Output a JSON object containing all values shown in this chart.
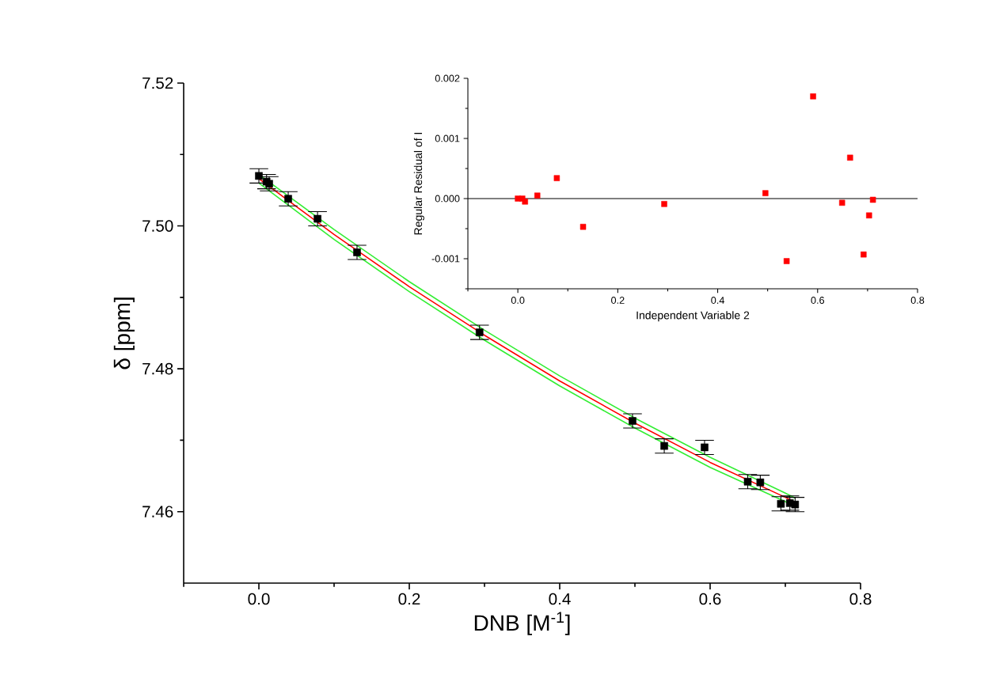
{
  "chart_data": [
    {
      "type": "scatter",
      "xlabel": "DNB [M$^{-1}$]",
      "ylabel": "δ [ppm]",
      "x": [
        0.0,
        0.0102,
        0.0137,
        0.039,
        0.078,
        0.1305,
        0.2934,
        0.4968,
        0.539,
        0.5926,
        0.65,
        0.6667,
        0.6941,
        0.706,
        0.713
      ],
      "xlim": [
        -0.1,
        0.8
      ],
      "ylim": [
        7.45,
        7.52
      ],
      "xticks": [
        {
          "value": -0.1,
          "label": null
        },
        {
          "value": 0,
          "label": "0.0"
        },
        {
          "value": 0.1,
          "label": null
        },
        0.2,
        {
          "value": 0.3,
          "label": null
        },
        0.4,
        {
          "value": 0.5,
          "label": null
        },
        0.6,
        {
          "value": 0.7,
          "label": null
        },
        0.8
      ],
      "yticks": [
        7.46,
        {
          "value": 7.47,
          "label": null
        },
        7.48,
        {
          "value": 7.49,
          "label": null
        },
        {
          "value": 7.5,
          "label": "7.50"
        },
        {
          "value": 7.51,
          "label": null
        },
        7.52
      ],
      "series": [
        {
          "type": "line",
          "color": "#ff0000",
          "marker": "none",
          "x": [
            0,
            0.1,
            0.2,
            0.3,
            0.4,
            0.5,
            0.6,
            0.7,
            0.713
          ],
          "values": [
            7.5066,
            7.4988,
            7.4915,
            7.4847,
            7.4783,
            7.4724,
            7.4669,
            7.462,
            7.4613
          ]
        },
        {
          "type": "line",
          "color": "#33ee33",
          "marker": "none",
          "x": [
            0,
            0.1,
            0.2,
            0.3,
            0.4,
            0.5,
            0.6,
            0.7,
            0.713
          ],
          "values": [
            7.5072,
            7.4995,
            7.4922,
            7.4854,
            7.479,
            7.4731,
            7.4676,
            7.4626,
            7.4619
          ]
        },
        {
          "type": "line",
          "color": "#33ee33",
          "marker": "none",
          "x": [
            0,
            0.1,
            0.2,
            0.3,
            0.4,
            0.5,
            0.6,
            0.7,
            0.713
          ],
          "values": [
            7.506,
            7.4981,
            7.4908,
            7.484,
            7.4776,
            7.4717,
            7.4662,
            7.4614,
            7.4607
          ]
        },
        {
          "color": "#000000",
          "marker": "square",
          "values": [
            7.507,
            7.5062,
            7.5059,
            7.5038,
            7.501,
            7.4963,
            7.4851,
            7.4727,
            7.4692,
            7.469,
            7.4642,
            7.4641,
            7.4611,
            7.4612,
            7.461
          ],
          "errors": [
            0.001,
            0.001,
            0.001,
            0.001,
            0.001,
            0.001,
            0.001,
            0.001,
            0.001,
            0.001,
            0.001,
            0.001,
            0.001,
            0.001,
            0.001
          ]
        }
      ]
    },
    {
      "type": "scatter",
      "xlabel": "Independent Variable 2",
      "ylabel": "Regular Residual of I",
      "x": [
        0.0,
        0.009,
        0.0144,
        0.039,
        0.078,
        0.1306,
        0.293,
        0.4955,
        0.538,
        0.591,
        0.649,
        0.665,
        0.692,
        0.703,
        0.7107
      ],
      "xlim": [
        -0.1,
        0.8
      ],
      "ylim": [
        -0.0015,
        0.002
      ],
      "xticks": [
        {
          "value": -0.1,
          "label": null
        },
        {
          "value": 0,
          "label": "0.0"
        },
        {
          "value": 0.1,
          "label": null
        },
        0.2,
        {
          "value": 0.3,
          "label": null
        },
        0.4,
        {
          "value": 0.5,
          "label": null
        },
        0.6,
        {
          "value": 0.7,
          "label": null
        },
        0.8
      ],
      "yticks": [
        {
          "value": -0.0015,
          "label": null
        },
        -0.001,
        {
          "value": -0.0005,
          "label": null
        },
        {
          "value": 0,
          "label": "0.000"
        },
        {
          "value": 0.0005,
          "label": null
        },
        0.001,
        {
          "value": 0.0015,
          "label": null
        },
        0.002
      ],
      "ref_lines": [
        {
          "axis": "y",
          "value": 0,
          "color": "#000000"
        }
      ],
      "series": [
        {
          "color": "#ff0000",
          "marker": "square",
          "values": [
            0.0,
            0.0,
            -5e-05,
            5e-05,
            0.00034,
            -0.00047,
            -9e-05,
            9e-05,
            -0.00104,
            0.0017,
            -7e-05,
            0.00068,
            -0.00093,
            -0.00028,
            -2e-05
          ]
        }
      ]
    }
  ]
}
